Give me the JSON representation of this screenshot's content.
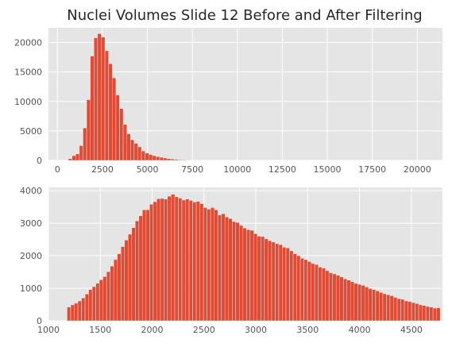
{
  "chart_data": [
    {
      "type": "bar",
      "title": "Nuclei Volumes Slide 12 Before and After Filtering",
      "xlabel": "",
      "ylabel": "",
      "xlim": [
        -500,
        21400
      ],
      "ylim": [
        0,
        22500
      ],
      "x_ticks": [
        0,
        2500,
        5000,
        7500,
        10000,
        12500,
        15000,
        17500,
        20000
      ],
      "y_ticks": [
        0,
        5000,
        10000,
        15000,
        20000
      ],
      "grid": true,
      "bin_width": 203,
      "bins_start": [
        608,
        811,
        1014,
        1217,
        1420,
        1623,
        1826,
        2029,
        2232,
        2435,
        2638,
        2841,
        3044,
        3247,
        3450,
        3653,
        3856,
        4059,
        4262,
        4465,
        4668,
        4871,
        5074,
        5277,
        5480,
        5683,
        5886,
        6089,
        6292,
        6495,
        6698,
        6901,
        7104
      ],
      "values": [
        300,
        800,
        1100,
        2500,
        5500,
        10300,
        17700,
        20800,
        21500,
        20900,
        18600,
        16400,
        14000,
        11100,
        8800,
        6100,
        4500,
        3500,
        2900,
        2300,
        1600,
        1250,
        1000,
        800,
        650,
        520,
        400,
        300,
        230,
        160,
        120,
        80,
        50
      ]
    },
    {
      "type": "bar",
      "title": "",
      "xlabel": "",
      "ylabel": "",
      "xlim": [
        1000,
        4800
      ],
      "ylim": [
        0,
        4100
      ],
      "x_ticks": [
        1000,
        1500,
        2000,
        2500,
        3000,
        3500,
        4000,
        4500
      ],
      "y_ticks": [
        0,
        1000,
        2000,
        3000,
        4000
      ],
      "grid": true,
      "bin_width": 34.6,
      "bins_start_first": 1180,
      "values": [
        420,
        490,
        540,
        610,
        700,
        820,
        960,
        1050,
        1150,
        1260,
        1360,
        1510,
        1680,
        1880,
        2060,
        2280,
        2480,
        2660,
        2860,
        3070,
        3230,
        3410,
        3410,
        3580,
        3660,
        3750,
        3760,
        3740,
        3830,
        3890,
        3810,
        3770,
        3710,
        3740,
        3700,
        3650,
        3670,
        3600,
        3480,
        3430,
        3480,
        3410,
        3250,
        3290,
        3190,
        3140,
        3050,
        3020,
        2930,
        2850,
        2800,
        2780,
        2680,
        2600,
        2590,
        2520,
        2460,
        2420,
        2370,
        2340,
        2260,
        2240,
        2150,
        2060,
        2000,
        1920,
        1880,
        1820,
        1760,
        1730,
        1650,
        1620,
        1540,
        1470,
        1440,
        1400,
        1350,
        1290,
        1250,
        1200,
        1150,
        1120,
        1090,
        1040,
        990,
        960,
        920,
        870,
        830,
        800,
        770,
        720,
        680,
        660,
        610,
        590,
        560,
        530,
        490,
        470,
        440,
        420,
        390,
        400
      ]
    }
  ],
  "colors": {
    "bar": "#E24A33",
    "panel_bg": "#E5E5E5",
    "grid": "#FFFFFF",
    "text": "#555555",
    "title": "#262626"
  }
}
